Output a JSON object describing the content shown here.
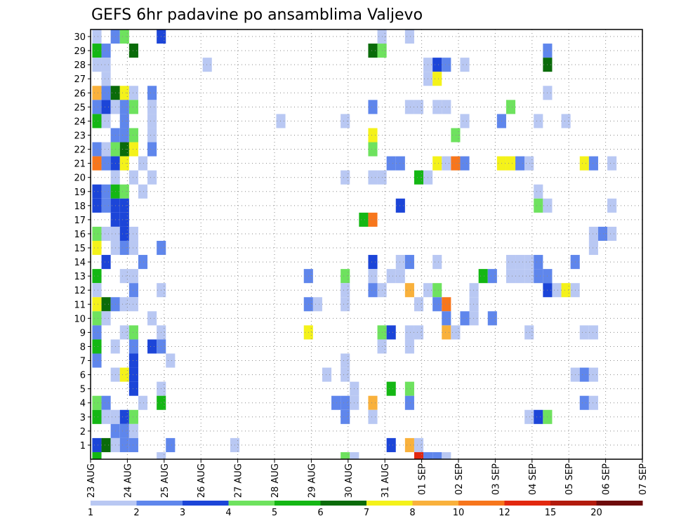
{
  "chart_data": {
    "type": "heatmap",
    "title": "GEFS 6hr padavine po ansamblima Valjevo",
    "xlabel": "",
    "ylabel": "",
    "x_tick_labels": [
      "23 AUG",
      "24 AUG",
      "25 AUG",
      "26 AUG",
      "27 AUG",
      "28 AUG",
      "29 AUG",
      "30 AUG",
      "31 AUG",
      "01 SEP",
      "02 SEP",
      "03 SEP",
      "04 SEP",
      "05 SEP",
      "06 SEP",
      "07 SEP"
    ],
    "y_tick_labels": [
      "1",
      "2",
      "3",
      "4",
      "5",
      "6",
      "7",
      "8",
      "9",
      "10",
      "11",
      "12",
      "13",
      "14",
      "15",
      "16",
      "17",
      "18",
      "19",
      "20",
      "21",
      "22",
      "23",
      "24",
      "25",
      "26",
      "27",
      "28",
      "29",
      "30"
    ],
    "x_step": "6 hours",
    "x_range": [
      "23 AUG",
      "07 SEP"
    ],
    "y_range": [
      0,
      30
    ],
    "grid": true,
    "legend_position": "bottom",
    "legend_bins": [
      1,
      2,
      3,
      4,
      5,
      6,
      7,
      8,
      10,
      12,
      15,
      20
    ],
    "legend_labels": [
      "1",
      "2",
      "3",
      "4",
      "5",
      "6",
      "7",
      "8",
      "10",
      "12",
      "15",
      "20"
    ],
    "legend_colors": [
      "#b9c8f3",
      "#5f86ec",
      "#1c45d8",
      "#6ee25e",
      "#14b714",
      "#0a6b0a",
      "#f4f21a",
      "#f9b13c",
      "#f7761c",
      "#e2280f",
      "#b31b0d",
      "#6e0b0b"
    ],
    "cells_format": "[member, step, value_mm]",
    "cells": [
      [
        30,
        0,
        1
      ],
      [
        30,
        2,
        2
      ],
      [
        30,
        3,
        4
      ],
      [
        30,
        7,
        3
      ],
      [
        30,
        31,
        1
      ],
      [
        30,
        34,
        1
      ],
      [
        29,
        0,
        5
      ],
      [
        29,
        1,
        2
      ],
      [
        29,
        4,
        6
      ],
      [
        29,
        30,
        6
      ],
      [
        29,
        31,
        4
      ],
      [
        29,
        49,
        2
      ],
      [
        28,
        0,
        1
      ],
      [
        28,
        1,
        1
      ],
      [
        28,
        12,
        1
      ],
      [
        28,
        36,
        1
      ],
      [
        28,
        37,
        3
      ],
      [
        28,
        38,
        2
      ],
      [
        28,
        40,
        1
      ],
      [
        28,
        49,
        6
      ],
      [
        27,
        1,
        1
      ],
      [
        27,
        36,
        1
      ],
      [
        27,
        37,
        7
      ],
      [
        26,
        0,
        9
      ],
      [
        26,
        1,
        2
      ],
      [
        26,
        2,
        6
      ],
      [
        26,
        3,
        7
      ],
      [
        26,
        4,
        1
      ],
      [
        26,
        6,
        2
      ],
      [
        26,
        49,
        1
      ],
      [
        25,
        0,
        2
      ],
      [
        25,
        1,
        3
      ],
      [
        25,
        2,
        1
      ],
      [
        25,
        3,
        2
      ],
      [
        25,
        4,
        4
      ],
      [
        25,
        6,
        1
      ],
      [
        25,
        30,
        2
      ],
      [
        25,
        34,
        1
      ],
      [
        25,
        35,
        1
      ],
      [
        25,
        37,
        1
      ],
      [
        25,
        38,
        1
      ],
      [
        25,
        45,
        4
      ],
      [
        24,
        0,
        5
      ],
      [
        24,
        1,
        1
      ],
      [
        24,
        3,
        2
      ],
      [
        24,
        6,
        1
      ],
      [
        24,
        20,
        1
      ],
      [
        24,
        27,
        1
      ],
      [
        24,
        40,
        1
      ],
      [
        24,
        44,
        2
      ],
      [
        24,
        48,
        1
      ],
      [
        24,
        51,
        1
      ],
      [
        23,
        2,
        2
      ],
      [
        23,
        3,
        2
      ],
      [
        23,
        4,
        4
      ],
      [
        23,
        6,
        1
      ],
      [
        23,
        30,
        7
      ],
      [
        23,
        39,
        4
      ],
      [
        22,
        0,
        2
      ],
      [
        22,
        1,
        1
      ],
      [
        22,
        2,
        4
      ],
      [
        22,
        3,
        6
      ],
      [
        22,
        4,
        7
      ],
      [
        22,
        6,
        2
      ],
      [
        22,
        30,
        4
      ],
      [
        21,
        0,
        10
      ],
      [
        21,
        1,
        2
      ],
      [
        21,
        2,
        3
      ],
      [
        21,
        3,
        7
      ],
      [
        21,
        5,
        1
      ],
      [
        21,
        32,
        2
      ],
      [
        21,
        33,
        2
      ],
      [
        21,
        37,
        7
      ],
      [
        21,
        38,
        1
      ],
      [
        21,
        39,
        10
      ],
      [
        21,
        40,
        2
      ],
      [
        21,
        44,
        7
      ],
      [
        21,
        45,
        7
      ],
      [
        21,
        46,
        2
      ],
      [
        21,
        47,
        1
      ],
      [
        21,
        53,
        7
      ],
      [
        21,
        54,
        2
      ],
      [
        21,
        56,
        1
      ],
      [
        20,
        2,
        1
      ],
      [
        20,
        4,
        1
      ],
      [
        20,
        6,
        1
      ],
      [
        20,
        27,
        1
      ],
      [
        20,
        30,
        1
      ],
      [
        20,
        31,
        1
      ],
      [
        20,
        35,
        5
      ],
      [
        20,
        36,
        1
      ],
      [
        19,
        0,
        3
      ],
      [
        19,
        1,
        2
      ],
      [
        19,
        2,
        5
      ],
      [
        19,
        3,
        4
      ],
      [
        19,
        5,
        1
      ],
      [
        19,
        48,
        1
      ],
      [
        18,
        0,
        3
      ],
      [
        18,
        1,
        2
      ],
      [
        18,
        2,
        3
      ],
      [
        18,
        3,
        3
      ],
      [
        18,
        33,
        3
      ],
      [
        18,
        48,
        4
      ],
      [
        18,
        49,
        1
      ],
      [
        18,
        56,
        1
      ],
      [
        17,
        2,
        3
      ],
      [
        17,
        3,
        3
      ],
      [
        17,
        29,
        5
      ],
      [
        17,
        30,
        10
      ],
      [
        16,
        0,
        4
      ],
      [
        16,
        1,
        1
      ],
      [
        16,
        2,
        1
      ],
      [
        16,
        3,
        3
      ],
      [
        16,
        4,
        1
      ],
      [
        16,
        54,
        1
      ],
      [
        16,
        55,
        2
      ],
      [
        16,
        56,
        1
      ],
      [
        15,
        0,
        7
      ],
      [
        15,
        2,
        1
      ],
      [
        15,
        3,
        2
      ],
      [
        15,
        4,
        1
      ],
      [
        15,
        7,
        2
      ],
      [
        15,
        54,
        1
      ],
      [
        14,
        1,
        3
      ],
      [
        14,
        5,
        2
      ],
      [
        14,
        30,
        3
      ],
      [
        14,
        33,
        1
      ],
      [
        14,
        34,
        2
      ],
      [
        14,
        37,
        1
      ],
      [
        14,
        45,
        1
      ],
      [
        14,
        46,
        1
      ],
      [
        14,
        47,
        1
      ],
      [
        14,
        48,
        2
      ],
      [
        14,
        52,
        2
      ],
      [
        13,
        0,
        5
      ],
      [
        13,
        3,
        1
      ],
      [
        13,
        4,
        1
      ],
      [
        13,
        23,
        2
      ],
      [
        13,
        27,
        4
      ],
      [
        13,
        30,
        1
      ],
      [
        13,
        32,
        1
      ],
      [
        13,
        33,
        1
      ],
      [
        13,
        42,
        5
      ],
      [
        13,
        43,
        2
      ],
      [
        13,
        45,
        1
      ],
      [
        13,
        46,
        1
      ],
      [
        13,
        47,
        1
      ],
      [
        13,
        48,
        2
      ],
      [
        13,
        49,
        2
      ],
      [
        12,
        0,
        1
      ],
      [
        12,
        4,
        2
      ],
      [
        12,
        7,
        1
      ],
      [
        12,
        27,
        1
      ],
      [
        12,
        30,
        2
      ],
      [
        12,
        31,
        1
      ],
      [
        12,
        34,
        9
      ],
      [
        12,
        36,
        1
      ],
      [
        12,
        37,
        4
      ],
      [
        12,
        41,
        1
      ],
      [
        12,
        49,
        3
      ],
      [
        12,
        50,
        1
      ],
      [
        12,
        51,
        7
      ],
      [
        12,
        52,
        1
      ],
      [
        11,
        0,
        7
      ],
      [
        11,
        1,
        6
      ],
      [
        11,
        2,
        2
      ],
      [
        11,
        3,
        1
      ],
      [
        11,
        4,
        1
      ],
      [
        11,
        23,
        2
      ],
      [
        11,
        24,
        1
      ],
      [
        11,
        27,
        1
      ],
      [
        11,
        35,
        1
      ],
      [
        11,
        37,
        2
      ],
      [
        11,
        38,
        10
      ],
      [
        11,
        41,
        1
      ],
      [
        10,
        0,
        4
      ],
      [
        10,
        1,
        1
      ],
      [
        10,
        6,
        1
      ],
      [
        10,
        38,
        2
      ],
      [
        10,
        40,
        2
      ],
      [
        10,
        41,
        1
      ],
      [
        10,
        43,
        2
      ],
      [
        9,
        0,
        2
      ],
      [
        9,
        3,
        1
      ],
      [
        9,
        4,
        4
      ],
      [
        9,
        7,
        1
      ],
      [
        9,
        23,
        7
      ],
      [
        9,
        31,
        4
      ],
      [
        9,
        32,
        3
      ],
      [
        9,
        34,
        1
      ],
      [
        9,
        35,
        1
      ],
      [
        9,
        38,
        8
      ],
      [
        9,
        39,
        1
      ],
      [
        9,
        47,
        1
      ],
      [
        9,
        53,
        1
      ],
      [
        9,
        54,
        1
      ],
      [
        8,
        0,
        5
      ],
      [
        8,
        2,
        1
      ],
      [
        8,
        4,
        2
      ],
      [
        8,
        6,
        3
      ],
      [
        8,
        7,
        2
      ],
      [
        8,
        31,
        1
      ],
      [
        8,
        34,
        1
      ],
      [
        7,
        0,
        2
      ],
      [
        7,
        4,
        3
      ],
      [
        7,
        8,
        1
      ],
      [
        7,
        27,
        1
      ],
      [
        6,
        2,
        1
      ],
      [
        6,
        3,
        7
      ],
      [
        6,
        4,
        3
      ],
      [
        6,
        25,
        1
      ],
      [
        6,
        27,
        1
      ],
      [
        6,
        52,
        1
      ],
      [
        6,
        53,
        2
      ],
      [
        6,
        54,
        1
      ],
      [
        5,
        4,
        3
      ],
      [
        5,
        7,
        1
      ],
      [
        5,
        28,
        1
      ],
      [
        5,
        32,
        5
      ],
      [
        5,
        34,
        4
      ],
      [
        4,
        0,
        4
      ],
      [
        4,
        1,
        2
      ],
      [
        4,
        5,
        1
      ],
      [
        4,
        7,
        5
      ],
      [
        4,
        26,
        2
      ],
      [
        4,
        27,
        2
      ],
      [
        4,
        28,
        1
      ],
      [
        4,
        30,
        9
      ],
      [
        4,
        34,
        2
      ],
      [
        4,
        53,
        2
      ],
      [
        4,
        54,
        1
      ],
      [
        3,
        0,
        5
      ],
      [
        3,
        1,
        1
      ],
      [
        3,
        2,
        1
      ],
      [
        3,
        3,
        3
      ],
      [
        3,
        4,
        4
      ],
      [
        3,
        27,
        2
      ],
      [
        3,
        30,
        1
      ],
      [
        3,
        47,
        1
      ],
      [
        3,
        48,
        3
      ],
      [
        3,
        49,
        4
      ],
      [
        2,
        2,
        2
      ],
      [
        2,
        3,
        2
      ],
      [
        2,
        4,
        1
      ],
      [
        1,
        0,
        3
      ],
      [
        1,
        1,
        6
      ],
      [
        1,
        2,
        1
      ],
      [
        1,
        3,
        2
      ],
      [
        1,
        4,
        2
      ],
      [
        1,
        8,
        2
      ],
      [
        1,
        15,
        1
      ],
      [
        1,
        32,
        3
      ],
      [
        1,
        34,
        9
      ],
      [
        1,
        35,
        1
      ],
      [
        0,
        0,
        5
      ],
      [
        0,
        7,
        1
      ],
      [
        0,
        27,
        4
      ],
      [
        0,
        28,
        1
      ],
      [
        0,
        35,
        13
      ],
      [
        0,
        36,
        2
      ],
      [
        0,
        37,
        2
      ],
      [
        0,
        38,
        1
      ]
    ]
  }
}
